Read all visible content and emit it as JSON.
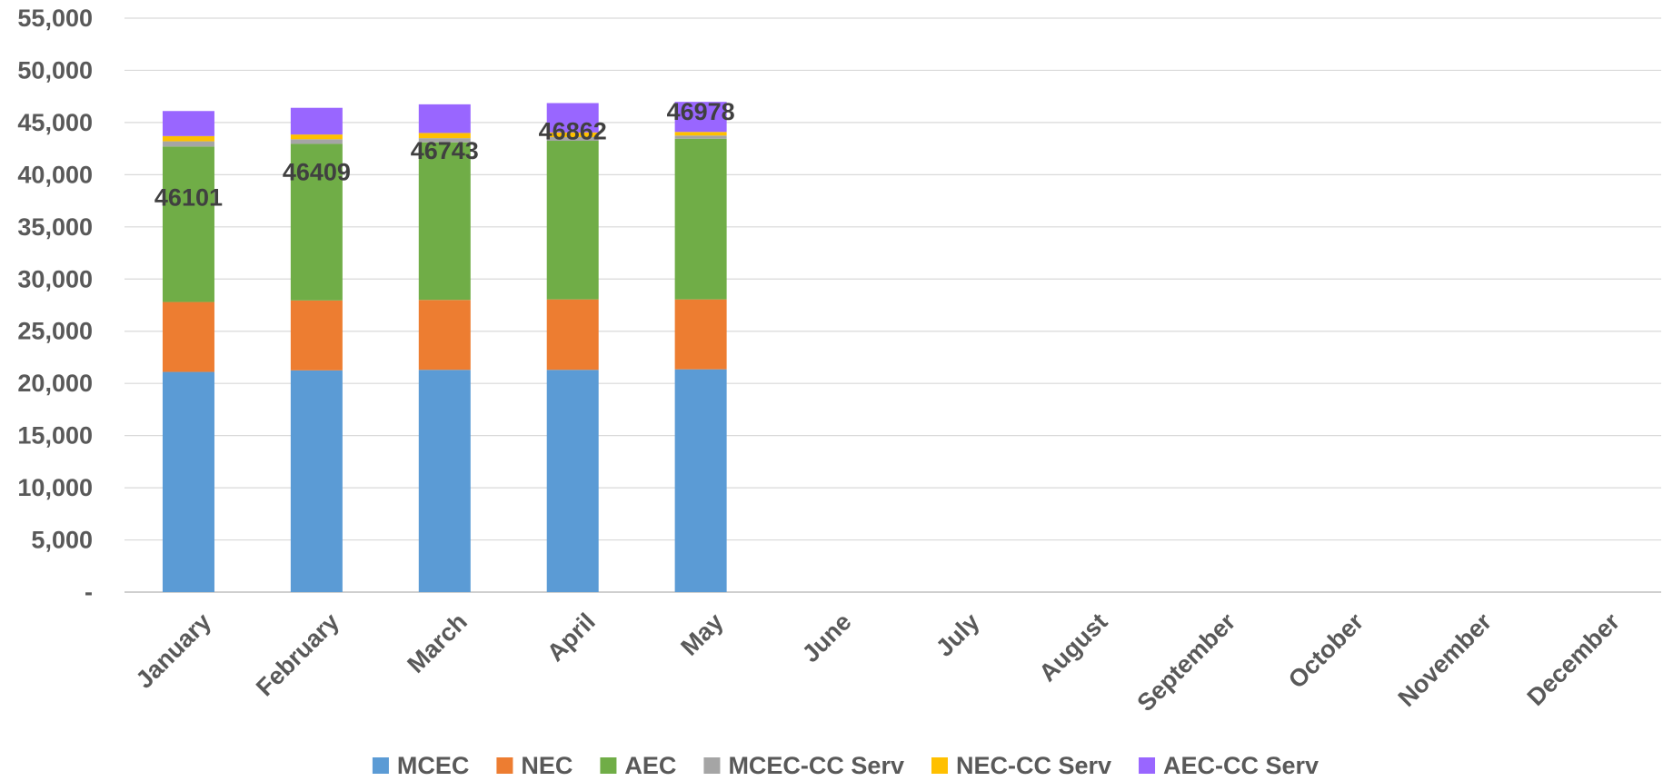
{
  "chart_data": {
    "type": "bar",
    "stacked": true,
    "categories": [
      "January",
      "February",
      "March",
      "April",
      "May",
      "June",
      "July",
      "August",
      "September",
      "October",
      "November",
      "December"
    ],
    "series": [
      {
        "name": "MCEC",
        "color": "#5B9BD5",
        "values": [
          21100,
          21250,
          21300,
          21300,
          21350,
          null,
          null,
          null,
          null,
          null,
          null,
          null
        ]
      },
      {
        "name": "NEC",
        "color": "#ED7D31",
        "values": [
          6700,
          6700,
          6700,
          6750,
          6700,
          null,
          null,
          null,
          null,
          null,
          null,
          null
        ]
      },
      {
        "name": "AEC",
        "color": "#70AD47",
        "values": [
          14900,
          15000,
          15100,
          15200,
          15400,
          null,
          null,
          null,
          null,
          null,
          null,
          null
        ]
      },
      {
        "name": "MCEC-CC Serv",
        "color": "#A5A5A5",
        "values": [
          500,
          450,
          400,
          350,
          300,
          null,
          null,
          null,
          null,
          null,
          null,
          null
        ]
      },
      {
        "name": "NEC-CC Serv",
        "color": "#FFC000",
        "values": [
          500,
          450,
          500,
          450,
          350,
          null,
          null,
          null,
          null,
          null,
          null,
          null
        ]
      },
      {
        "name": "AEC-CC Serv",
        "color": "#9966FF",
        "values": [
          2401,
          2559,
          2743,
          2812,
          2878,
          null,
          null,
          null,
          null,
          null,
          null,
          null
        ]
      }
    ],
    "totals": [
      "46101",
      "46409",
      "46743",
      "46862",
      "46978"
    ],
    "y_ticks": [
      "-",
      "5,000",
      "10,000",
      "15,000",
      "20,000",
      "25,000",
      "30,000",
      "35,000",
      "40,000",
      "45,000",
      "50,000",
      "55,000"
    ],
    "ylim": [
      0,
      55000
    ],
    "y_step": 5000,
    "grid": true,
    "legend_position": "bottom",
    "title": "",
    "xlabel": "",
    "ylabel": ""
  }
}
